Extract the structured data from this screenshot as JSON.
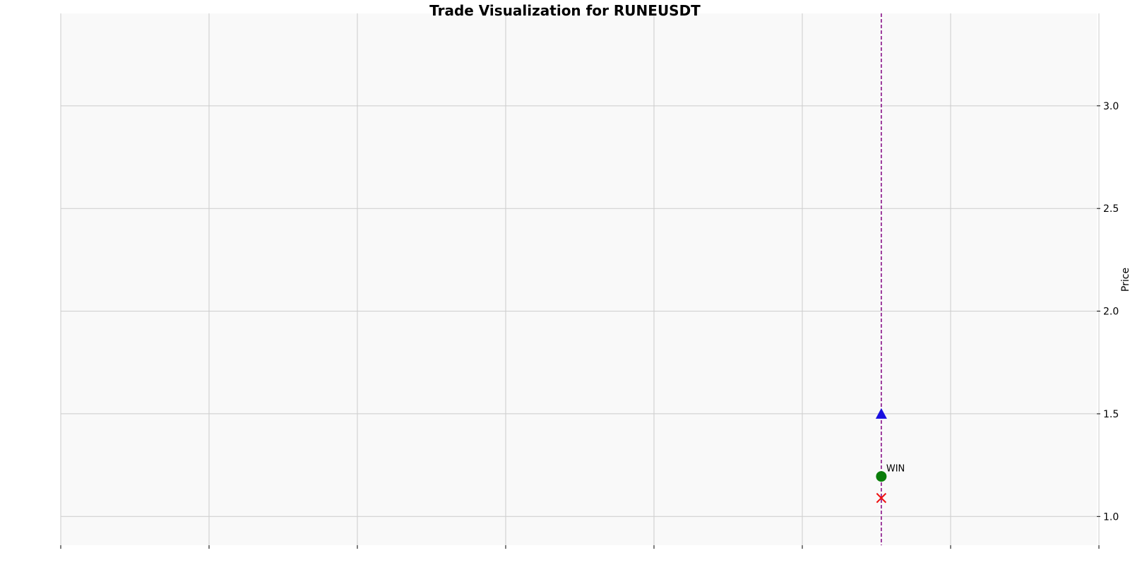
{
  "chart_data": {
    "type": "scatter",
    "title": "Trade Visualization for RUNEUSDT",
    "ylabel": "Price",
    "y_axis_position": "right",
    "ylim": [
      0.86,
      3.45
    ],
    "yticks": [
      1.0,
      1.5,
      2.0,
      2.5,
      3.0
    ],
    "ytick_labels": [
      "1.0",
      "1.5",
      "2.0",
      "2.5",
      "3.0"
    ],
    "x_tick_count": 8,
    "grid": true,
    "background": "#f9f9f9",
    "grid_color": "#cccccc",
    "trade": {
      "x_fraction": 0.792,
      "entry_price": 1.5,
      "exit_price": 1.195,
      "stop_price": 1.09,
      "annotation": "WIN"
    },
    "markers": [
      {
        "kind": "entry",
        "shape": "triangle-up",
        "price": 1.5,
        "color": "#1a10e0"
      },
      {
        "kind": "exit",
        "shape": "circle",
        "price": 1.195,
        "color": "#0a7d0a"
      },
      {
        "kind": "stop",
        "shape": "x",
        "price": 1.09,
        "color": "#ee1111"
      }
    ],
    "vline_color": "#800080"
  }
}
